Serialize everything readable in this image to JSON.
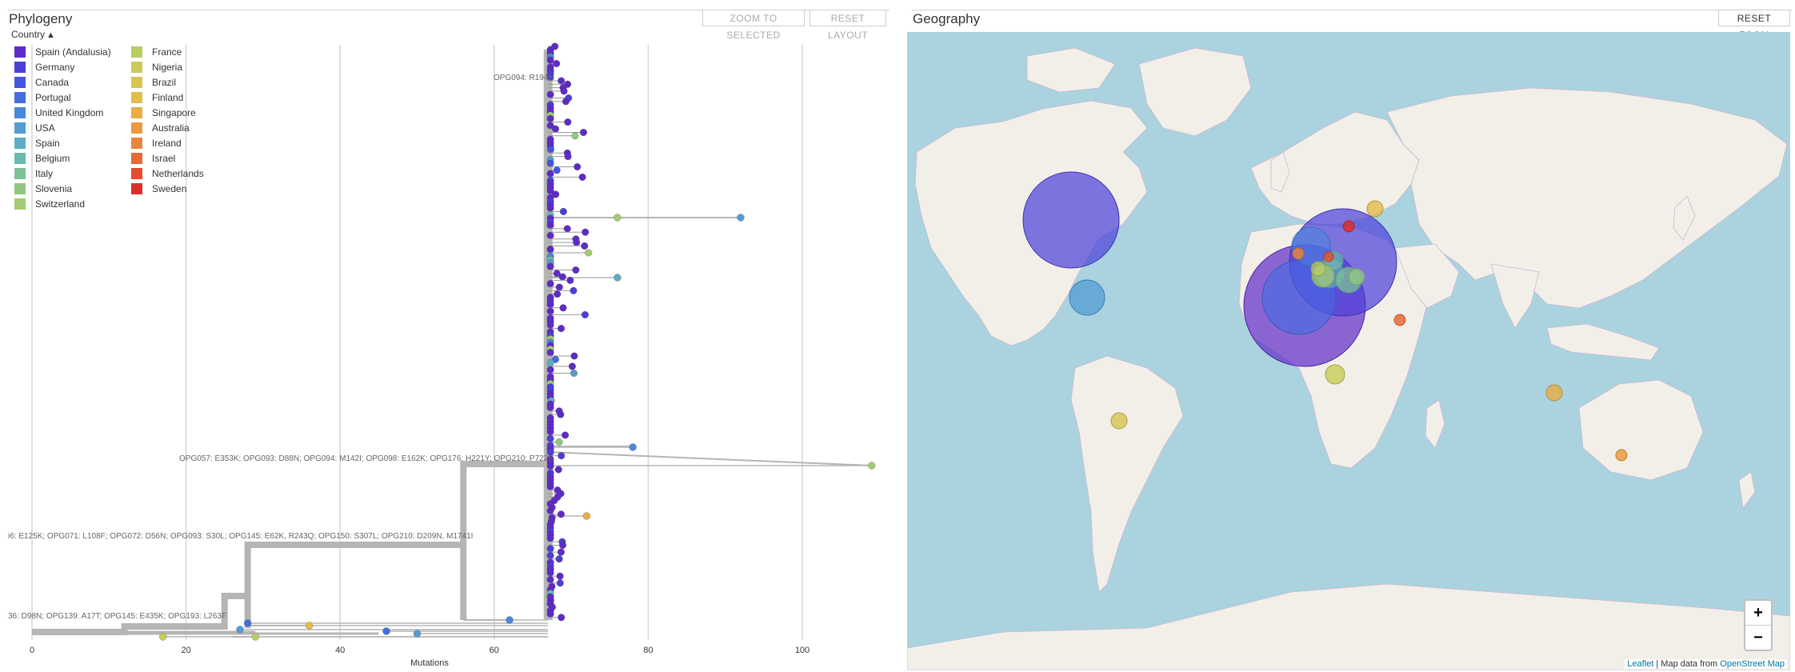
{
  "phylogeny": {
    "title": "Phylogeny",
    "zoom_to_selected": "ZOOM TO SELECTED",
    "reset_layout": "RESET LAYOUT",
    "legend_title": "Country",
    "legend": [
      {
        "label": "Spain (Andalusia)",
        "color": "#5e2bc7"
      },
      {
        "label": "Germany",
        "color": "#4b3fd8"
      },
      {
        "label": "Canada",
        "color": "#4455e0"
      },
      {
        "label": "Portugal",
        "color": "#456de2"
      },
      {
        "label": "United Kingdom",
        "color": "#4a86de"
      },
      {
        "label": "USA",
        "color": "#529cd3"
      },
      {
        "label": "Spain",
        "color": "#5eadc2"
      },
      {
        "label": "Belgium",
        "color": "#6cb9ad"
      },
      {
        "label": "Italy",
        "color": "#7ec198"
      },
      {
        "label": "Slovenia",
        "color": "#92c783"
      },
      {
        "label": "Switzerland",
        "color": "#a5cb72"
      },
      {
        "label": "France",
        "color": "#b8cd63"
      },
      {
        "label": "Nigeria",
        "color": "#c9cc58"
      },
      {
        "label": "Brazil",
        "color": "#d6c650"
      },
      {
        "label": "Finland",
        "color": "#e1bc4a"
      },
      {
        "label": "Singapore",
        "color": "#e8ad45"
      },
      {
        "label": "Australia",
        "color": "#eb9a40"
      },
      {
        "label": "Ireland",
        "color": "#ea833b"
      },
      {
        "label": "Israel",
        "color": "#e76a36"
      },
      {
        "label": "Netherlands",
        "color": "#e24f30"
      },
      {
        "label": "Sweden",
        "color": "#db2f2a"
      }
    ],
    "axis_label": "Mutations",
    "axis_ticks": [
      "0",
      "20",
      "40",
      "60",
      "80",
      "100"
    ],
    "branch_labels": {
      "opg094": "OPG094: R194H",
      "clade_a": "OPG057: E353K; OPG093: D88N; OPG094: M142I; OPG098: E162K; OPG176: H221Y; OPG210: P722S",
      "clade_b": "i6: E125K; OPG071: L108F; OPG072: D56N; OPG093: S30L; OPG145: E62K, R243Q; OPG150: S307L; OPG210: D209N, M1741I",
      "clade_c": "36: D98N; OPG139: A17T; OPG145: E435K; OPG193: L263F"
    }
  },
  "geography": {
    "title": "Geography",
    "reset_zoom": "RESET ZOOM",
    "zoom_in": "+",
    "zoom_out": "−",
    "attribution_leaflet": "Leaflet",
    "attribution_text": " | Map data from ",
    "attribution_osm": "OpenStreet Map"
  }
}
